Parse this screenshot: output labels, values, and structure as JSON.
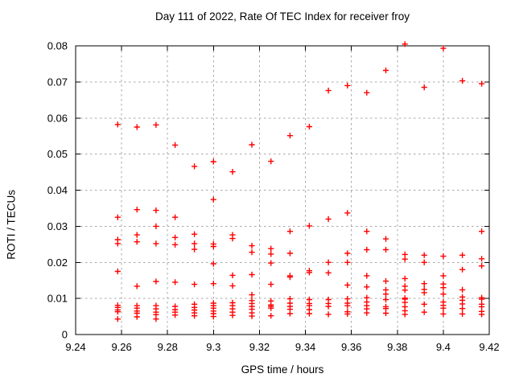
{
  "chart_data": {
    "type": "scatter",
    "title": "Day 111 of 2022, Rate Of TEC Index for receiver froy",
    "xlabel": "GPS time / hours",
    "ylabel": "ROTI / TECUs",
    "xlim": [
      9.24,
      9.42
    ],
    "ylim": [
      0,
      0.08
    ],
    "grid": true,
    "legend_position": "none",
    "marker": {
      "shape": "plus",
      "color": "#ff0000"
    },
    "colors": {
      "marker": "#ff0000",
      "grid": "#a8a8a8",
      "axis": "#000000",
      "background": "#ffffff"
    },
    "xticks": {
      "values": [
        9.24,
        9.26,
        9.28,
        9.3,
        9.32,
        9.34,
        9.36,
        9.38,
        9.4,
        9.42
      ],
      "labels": [
        "9.24",
        "9.26",
        "9.28",
        "9.3",
        "9.32",
        "9.34",
        "9.36",
        "9.38",
        "9.4",
        "9.42"
      ]
    },
    "yticks": {
      "values": [
        0,
        0.01,
        0.02,
        0.03,
        0.04,
        0.05,
        0.06,
        0.07,
        0.08
      ],
      "labels": [
        "0",
        "0.01",
        "0.02",
        "0.03",
        "0.04",
        "0.05",
        "0.06",
        "0.07",
        "0.08"
      ]
    },
    "series": [
      {
        "name": "ROTI",
        "points_by_time": [
          {
            "t": 9.2583,
            "roti": [
              0.0582,
              0.0325,
              0.0263,
              0.0252,
              0.0175,
              0.0081,
              0.0075,
              0.0068,
              0.0063,
              0.0043
            ]
          },
          {
            "t": 9.2667,
            "roti": [
              0.0575,
              0.0346,
              0.0276,
              0.0257,
              0.0134,
              0.008,
              0.0073,
              0.0065,
              0.0059,
              0.0049
            ]
          },
          {
            "t": 9.275,
            "roti": [
              0.0581,
              0.0344,
              0.03,
              0.0252,
              0.0147,
              0.008,
              0.0071,
              0.0062,
              0.0055,
              0.0043
            ]
          },
          {
            "t": 9.2833,
            "roti": [
              0.0525,
              0.0325,
              0.0269,
              0.0249,
              0.0145,
              0.0078,
              0.0069,
              0.0062,
              0.0054
            ]
          },
          {
            "t": 9.2917,
            "roti": [
              0.0466,
              0.0278,
              0.0252,
              0.0236,
              0.0139,
              0.0084,
              0.0075,
              0.0068,
              0.006,
              0.0052
            ]
          },
          {
            "t": 9.3,
            "roti": [
              0.0479,
              0.0374,
              0.0251,
              0.0244,
              0.0196,
              0.0141,
              0.0087,
              0.008,
              0.0073,
              0.0065,
              0.0058,
              0.005
            ]
          },
          {
            "t": 9.3083,
            "roti": [
              0.0451,
              0.0276,
              0.0266,
              0.0164,
              0.0135,
              0.0088,
              0.008,
              0.0071,
              0.0062,
              0.0053
            ]
          },
          {
            "t": 9.3167,
            "roti": [
              0.0526,
              0.0246,
              0.0228,
              0.0166,
              0.011,
              0.0094,
              0.0086,
              0.0078,
              0.007,
              0.006,
              0.0051
            ]
          },
          {
            "t": 9.325,
            "roti": [
              0.048,
              0.0238,
              0.0223,
              0.0198,
              0.0139,
              0.0093,
              0.0082,
              0.0078,
              0.0073,
              0.0052
            ]
          },
          {
            "t": 9.3333,
            "roti": [
              0.0551,
              0.0286,
              0.0225,
              0.0163,
              0.0159,
              0.0099,
              0.0087,
              0.0078,
              0.007,
              0.0058
            ]
          },
          {
            "t": 9.3417,
            "roti": [
              0.0576,
              0.0301,
              0.0177,
              0.0172,
              0.0097,
              0.0086,
              0.008,
              0.0069,
              0.0058
            ]
          },
          {
            "t": 9.35,
            "roti": [
              0.0676,
              0.032,
              0.02,
              0.0171,
              0.0097,
              0.0086,
              0.0078,
              0.0056
            ]
          },
          {
            "t": 9.3583,
            "roti": [
              0.069,
              0.0337,
              0.0225,
              0.02,
              0.0137,
              0.0099,
              0.0087,
              0.008,
              0.0063,
              0.0057
            ]
          },
          {
            "t": 9.3667,
            "roti": [
              0.067,
              0.0286,
              0.0235,
              0.0163,
              0.0132,
              0.0102,
              0.009,
              0.008,
              0.0071,
              0.006
            ]
          },
          {
            "t": 9.375,
            "roti": [
              0.0732,
              0.0265,
              0.0235,
              0.0148,
              0.0124,
              0.0112,
              0.0097,
              0.0077,
              0.0072,
              0.0059
            ]
          },
          {
            "t": 9.3833,
            "roti": [
              0.0805,
              0.0222,
              0.0209,
              0.0155,
              0.0134,
              0.0123,
              0.0101,
              0.0098,
              0.0089,
              0.0077,
              0.0066,
              0.0056
            ]
          },
          {
            "t": 9.3917,
            "roti": [
              0.0685,
              0.022,
              0.02,
              0.0141,
              0.0125,
              0.0116,
              0.0084,
              0.0062
            ]
          },
          {
            "t": 9.4,
            "roti": [
              0.0793,
              0.0217,
              0.0163,
              0.014,
              0.013,
              0.0112,
              0.009,
              0.0081,
              0.0073,
              0.0057
            ]
          },
          {
            "t": 9.4083,
            "roti": [
              0.0703,
              0.022,
              0.018,
              0.0124,
              0.0104,
              0.0095,
              0.0085,
              0.0072,
              0.0057
            ]
          },
          {
            "t": 9.4167,
            "roti": [
              0.0695,
              0.0286,
              0.021,
              0.019,
              0.0102,
              0.0098,
              0.0084,
              0.0077,
              0.0064,
              0.0056
            ]
          }
        ]
      }
    ]
  }
}
